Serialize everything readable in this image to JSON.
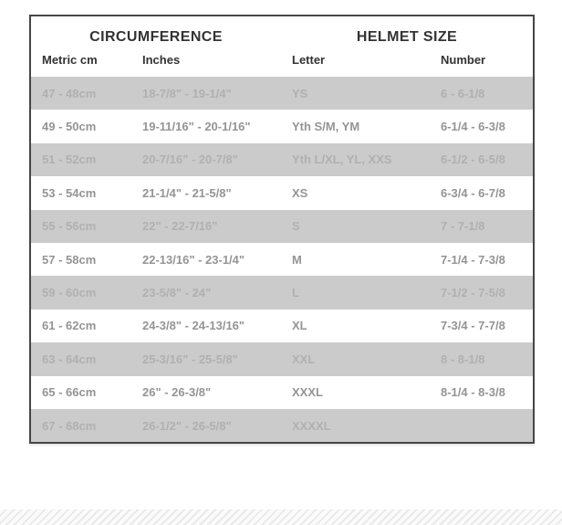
{
  "chart_data": {
    "type": "table",
    "group_headers": [
      {
        "label": "CIRCUMFERENCE",
        "span": 2
      },
      {
        "label": "HELMET SIZE",
        "span": 2
      }
    ],
    "columns": [
      "Metric cm",
      "Inches",
      "Letter",
      "Number"
    ],
    "column_keys": [
      "metric",
      "inches",
      "letter",
      "number"
    ],
    "rows": [
      [
        "47 - 48cm",
        "18-7/8\" - 19-1/4\"",
        "YS",
        "6 - 6-1/8"
      ],
      [
        "49 - 50cm",
        "19-11/16\" - 20-1/16\"",
        "Yth S/M, YM",
        "6-1/4 - 6-3/8"
      ],
      [
        "51 - 52cm",
        "20-7/16\" - 20-7/8\"",
        "Yth L/XL, YL, XXS",
        "6-1/2 - 6-5/8"
      ],
      [
        "53 - 54cm",
        "21-1/4\" - 21-5/8\"",
        "XS",
        "6-3/4 - 6-7/8"
      ],
      [
        "55 - 56cm",
        "22\" - 22-7/16\"",
        "S",
        "7 - 7-1/8"
      ],
      [
        "57 - 58cm",
        "22-13/16\" - 23-1/4\"",
        "M",
        "7-1/4 - 7-3/8"
      ],
      [
        "59 - 60cm",
        "23-5/8\" - 24\"",
        "L",
        "7-1/2 - 7-5/8"
      ],
      [
        "61 - 62cm",
        "24-3/8\" - 24-13/16\"",
        "XL",
        "7-3/4 - 7-7/8"
      ],
      [
        "63 - 64cm",
        "25-3/16\" - 25-5/8\"",
        "XXL",
        "8 - 8-1/8"
      ],
      [
        "65 - 66cm",
        "26\" - 26-3/8\"",
        "XXXL",
        "8-1/4 - 8-3/8"
      ],
      [
        "67 - 68cm",
        "26-1/2\" - 26-5/8\"",
        "XXXXL",
        ""
      ]
    ],
    "shaded_row_pattern": "odd",
    "layout": {
      "grid": false,
      "internal_borders": false
    },
    "colors": {
      "table_border": "#464646",
      "header_text": "#333333",
      "row_text": "#949494",
      "shaded_row_bg": "#cbcbcb",
      "shaded_row_text": "#b0b0b0",
      "footer_stripe": "#e9e9e9"
    }
  }
}
